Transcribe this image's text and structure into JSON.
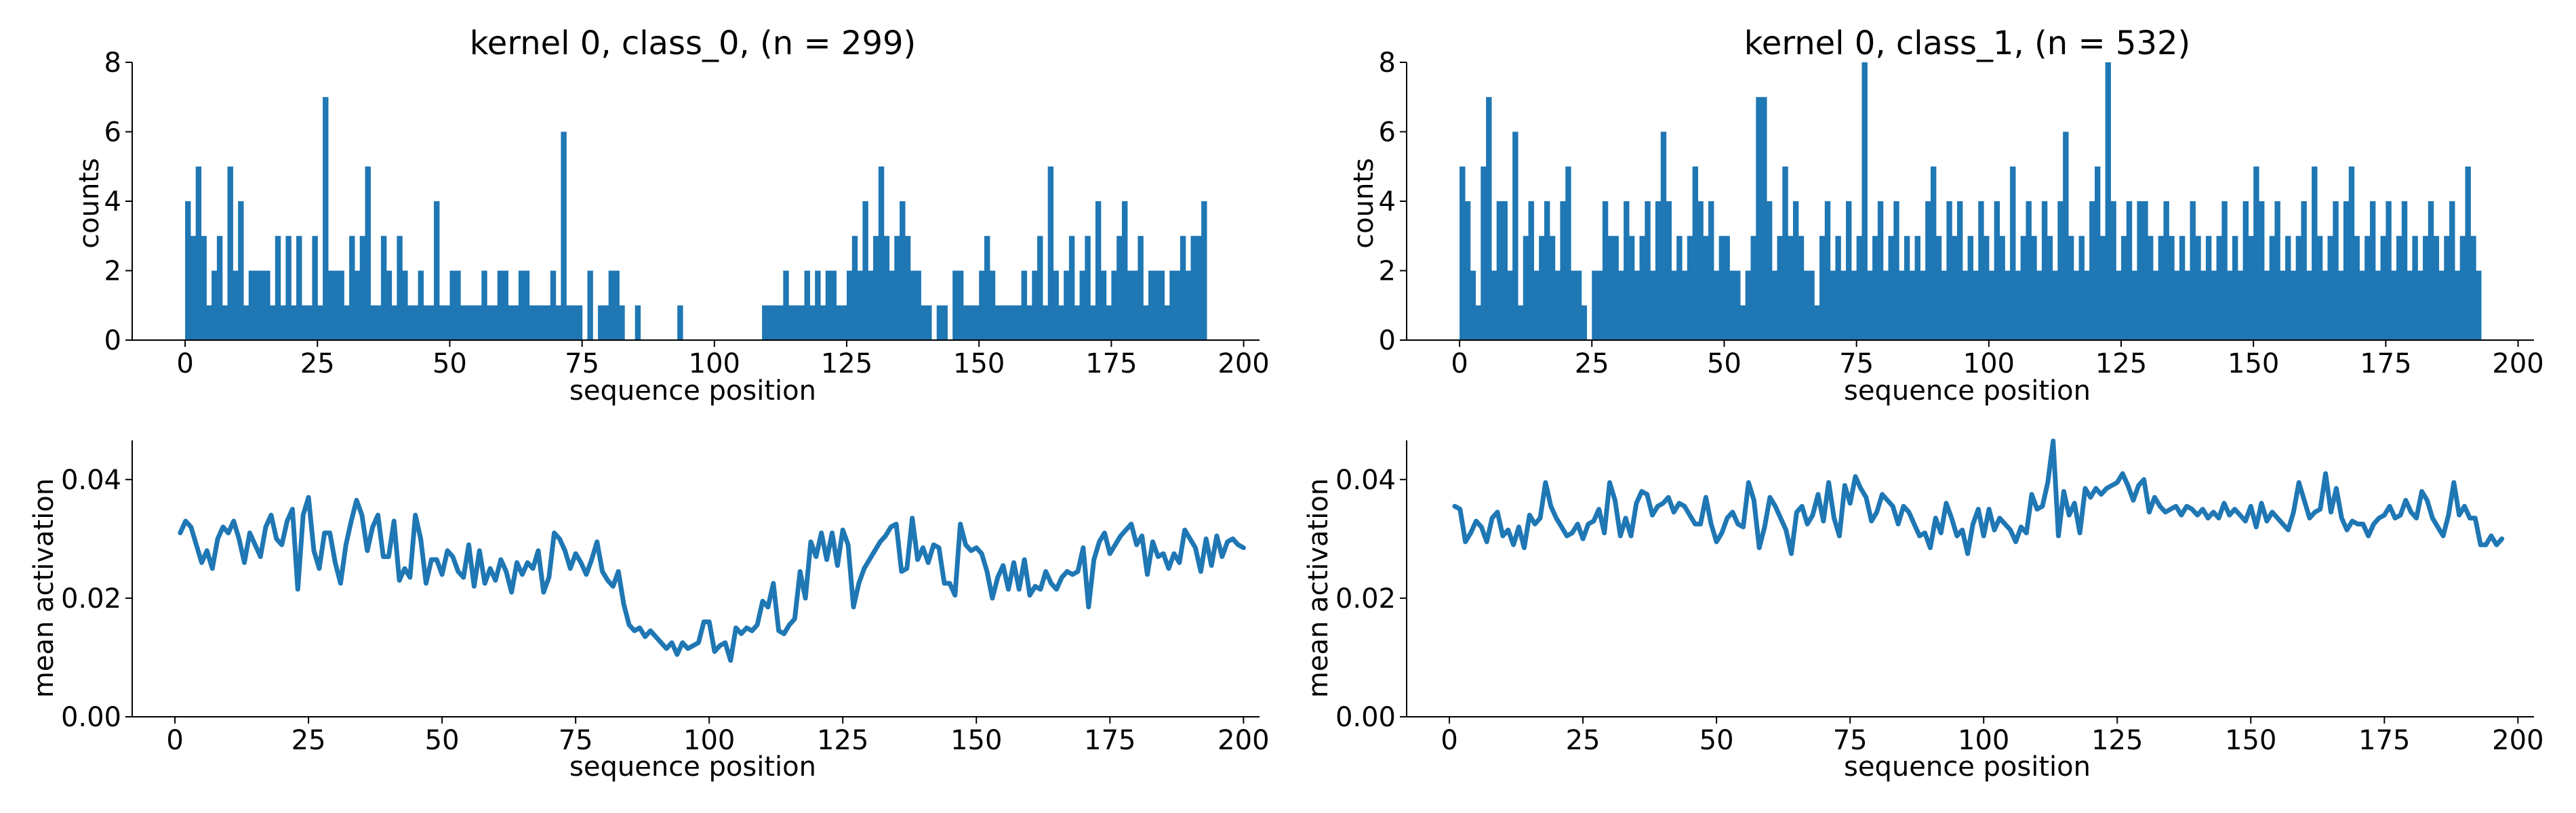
{
  "chart_data": [
    {
      "id": "hist0",
      "type": "bar",
      "title": "kernel 0, class_0, (n = 299)",
      "xlabel": "sequence position",
      "ylabel": "counts",
      "xlim": [
        -10,
        203
      ],
      "ylim": [
        0,
        8
      ],
      "xticks": [
        0,
        25,
        50,
        75,
        100,
        125,
        150,
        175,
        200
      ],
      "yticks": [
        0,
        2,
        4,
        6,
        8
      ],
      "color": "#1f77b4",
      "x": [
        0,
        1,
        2,
        3,
        4,
        5,
        6,
        7,
        8,
        9,
        10,
        11,
        12,
        13,
        14,
        15,
        16,
        17,
        18,
        19,
        20,
        21,
        22,
        23,
        24,
        25,
        26,
        27,
        28,
        29,
        30,
        31,
        32,
        33,
        34,
        35,
        36,
        37,
        38,
        39,
        40,
        41,
        42,
        43,
        44,
        45,
        46,
        47,
        48,
        49,
        50,
        51,
        52,
        53,
        54,
        55,
        56,
        57,
        58,
        59,
        60,
        61,
        62,
        63,
        64,
        65,
        66,
        67,
        68,
        69,
        70,
        71,
        72,
        73,
        74,
        75,
        76,
        77,
        78,
        79,
        80,
        81,
        82,
        83,
        84,
        85,
        86,
        87,
        88,
        89,
        90,
        91,
        92,
        93,
        94,
        95,
        96,
        97,
        98,
        99,
        100,
        101,
        102,
        103,
        104,
        105,
        106,
        107,
        108,
        109,
        110,
        111,
        112,
        113,
        114,
        115,
        116,
        117,
        118,
        119,
        120,
        121,
        122,
        123,
        124,
        125,
        126,
        127,
        128,
        129,
        130,
        131,
        132,
        133,
        134,
        135,
        136,
        137,
        138,
        139,
        140,
        141,
        142,
        143,
        144,
        145,
        146,
        147,
        148,
        149,
        150,
        151,
        152,
        153,
        154,
        155,
        156,
        157,
        158,
        159,
        160,
        161,
        162,
        163,
        164,
        165,
        166,
        167,
        168,
        169,
        170,
        171,
        172,
        173,
        174,
        175,
        176,
        177,
        178,
        179,
        180,
        181,
        182,
        183,
        184,
        185,
        186,
        187,
        188,
        189,
        190,
        191,
        192
      ],
      "values": [
        4,
        3,
        5,
        3,
        1,
        2,
        3,
        1,
        5,
        2,
        4,
        1,
        2,
        2,
        2,
        2,
        1,
        3,
        1,
        3,
        1,
        3,
        1,
        1,
        3,
        1,
        7,
        2,
        2,
        2,
        1,
        3,
        2,
        3,
        5,
        1,
        1,
        3,
        2,
        1,
        3,
        2,
        1,
        1,
        2,
        1,
        1,
        4,
        1,
        1,
        2,
        2,
        1,
        1,
        1,
        1,
        2,
        1,
        1,
        2,
        2,
        1,
        1,
        2,
        2,
        1,
        1,
        1,
        1,
        2,
        1,
        6,
        1,
        1,
        1,
        0,
        2,
        0,
        1,
        1,
        2,
        2,
        1,
        0,
        0,
        1,
        0,
        0,
        0,
        0,
        0,
        0,
        0,
        1,
        0,
        0,
        0,
        0,
        0,
        0,
        0,
        0,
        0,
        0,
        0,
        0,
        0,
        0,
        0,
        1,
        1,
        1,
        1,
        2,
        1,
        1,
        1,
        2,
        1,
        2,
        1,
        2,
        2,
        1,
        1,
        2,
        3,
        2,
        4,
        2,
        3,
        5,
        3,
        2,
        3,
        4,
        3,
        2,
        2,
        1,
        1,
        0,
        1,
        1,
        0,
        2,
        2,
        1,
        1,
        1,
        2,
        3,
        2,
        1,
        1,
        1,
        1,
        1,
        2,
        1,
        2,
        3,
        1,
        5,
        2,
        1,
        2,
        3,
        1,
        2,
        3,
        1,
        4,
        2,
        1,
        2,
        3,
        4,
        2,
        2,
        3,
        1,
        2,
        2,
        2,
        1,
        2,
        2,
        3,
        2,
        3,
        3,
        4
      ]
    },
    {
      "id": "line0",
      "type": "line",
      "title": "",
      "xlabel": "sequence position",
      "ylabel": "mean activation",
      "xlim": [
        -8,
        203
      ],
      "ylim": [
        0,
        0.0466
      ],
      "xticks": [
        0,
        25,
        50,
        75,
        100,
        125,
        150,
        175,
        200
      ],
      "yticks": [
        0.0,
        0.02,
        0.04
      ],
      "ytick_labels": [
        "0.00",
        "0.02",
        "0.04"
      ],
      "color": "#1f77b4",
      "x_start": 1,
      "y": [
        0.031,
        0.033,
        0.032,
        0.029,
        0.026,
        0.028,
        0.025,
        0.03,
        0.032,
        0.031,
        0.033,
        0.03,
        0.026,
        0.031,
        0.029,
        0.027,
        0.032,
        0.034,
        0.03,
        0.029,
        0.033,
        0.035,
        0.0215,
        0.034,
        0.037,
        0.028,
        0.025,
        0.031,
        0.031,
        0.026,
        0.0225,
        0.029,
        0.033,
        0.0365,
        0.034,
        0.028,
        0.032,
        0.034,
        0.027,
        0.027,
        0.033,
        0.023,
        0.025,
        0.0235,
        0.034,
        0.03,
        0.0225,
        0.0265,
        0.0265,
        0.024,
        0.028,
        0.027,
        0.0245,
        0.0235,
        0.029,
        0.022,
        0.028,
        0.0225,
        0.025,
        0.023,
        0.0265,
        0.0245,
        0.021,
        0.026,
        0.024,
        0.026,
        0.025,
        0.028,
        0.021,
        0.0235,
        0.031,
        0.03,
        0.028,
        0.025,
        0.0275,
        0.026,
        0.024,
        0.0265,
        0.0295,
        0.0245,
        0.023,
        0.022,
        0.0245,
        0.019,
        0.0155,
        0.0145,
        0.015,
        0.0135,
        0.0145,
        0.0135,
        0.0125,
        0.0115,
        0.0125,
        0.0105,
        0.0125,
        0.0115,
        0.012,
        0.0125,
        0.016,
        0.016,
        0.011,
        0.012,
        0.0125,
        0.0095,
        0.015,
        0.014,
        0.015,
        0.0145,
        0.0155,
        0.0195,
        0.0185,
        0.0225,
        0.0145,
        0.014,
        0.0155,
        0.0165,
        0.0245,
        0.02,
        0.0295,
        0.027,
        0.031,
        0.0265,
        0.031,
        0.0255,
        0.0315,
        0.029,
        0.0185,
        0.0225,
        0.025,
        0.0265,
        0.028,
        0.0295,
        0.0305,
        0.032,
        0.0325,
        0.0245,
        0.025,
        0.0335,
        0.0265,
        0.0285,
        0.026,
        0.029,
        0.0285,
        0.0225,
        0.0225,
        0.0205,
        0.0325,
        0.029,
        0.028,
        0.0285,
        0.0275,
        0.0245,
        0.02,
        0.0235,
        0.0255,
        0.0215,
        0.026,
        0.0215,
        0.0265,
        0.0205,
        0.022,
        0.0215,
        0.0245,
        0.0225,
        0.0215,
        0.0235,
        0.0245,
        0.024,
        0.0245,
        0.0285,
        0.0185,
        0.0265,
        0.0295,
        0.031,
        0.0275,
        0.029,
        0.0305,
        0.0315,
        0.0325,
        0.029,
        0.0305,
        0.024,
        0.0295,
        0.027,
        0.0275,
        0.025,
        0.0275,
        0.026,
        0.0315,
        0.03,
        0.0285,
        0.0245,
        0.03,
        0.0255,
        0.0305,
        0.027,
        0.0295,
        0.03,
        0.029,
        0.0285
      ]
    },
    {
      "id": "hist1",
      "type": "bar",
      "title": "kernel 0, class_1, (n = 532)",
      "xlabel": "sequence position",
      "ylabel": "counts",
      "xlim": [
        -10,
        203
      ],
      "ylim": [
        0,
        8
      ],
      "xticks": [
        0,
        25,
        50,
        75,
        100,
        125,
        150,
        175,
        200
      ],
      "yticks": [
        0,
        2,
        4,
        6,
        8
      ],
      "color": "#1f77b4",
      "x": [
        0,
        1,
        2,
        3,
        4,
        5,
        6,
        7,
        8,
        9,
        10,
        11,
        12,
        13,
        14,
        15,
        16,
        17,
        18,
        19,
        20,
        21,
        22,
        23,
        24,
        25,
        26,
        27,
        28,
        29,
        30,
        31,
        32,
        33,
        34,
        35,
        36,
        37,
        38,
        39,
        40,
        41,
        42,
        43,
        44,
        45,
        46,
        47,
        48,
        49,
        50,
        51,
        52,
        53,
        54,
        55,
        56,
        57,
        58,
        59,
        60,
        61,
        62,
        63,
        64,
        65,
        66,
        67,
        68,
        69,
        70,
        71,
        72,
        73,
        74,
        75,
        76,
        77,
        78,
        79,
        80,
        81,
        82,
        83,
        84,
        85,
        86,
        87,
        88,
        89,
        90,
        91,
        92,
        93,
        94,
        95,
        96,
        97,
        98,
        99,
        100,
        101,
        102,
        103,
        104,
        105,
        106,
        107,
        108,
        109,
        110,
        111,
        112,
        113,
        114,
        115,
        116,
        117,
        118,
        119,
        120,
        121,
        122,
        123,
        124,
        125,
        126,
        127,
        128,
        129,
        130,
        131,
        132,
        133,
        134,
        135,
        136,
        137,
        138,
        139,
        140,
        141,
        142,
        143,
        144,
        145,
        146,
        147,
        148,
        149,
        150,
        151,
        152,
        153,
        154,
        155,
        156,
        157,
        158,
        159,
        160,
        161,
        162,
        163,
        164,
        165,
        166,
        167,
        168,
        169,
        170,
        171,
        172,
        173,
        174,
        175,
        176,
        177,
        178,
        179,
        180,
        181,
        182,
        183,
        184,
        185,
        186,
        187,
        188,
        189,
        190,
        191,
        192
      ],
      "values": [
        5,
        4,
        2,
        1,
        5,
        7,
        2,
        4,
        4,
        2,
        6,
        1,
        3,
        4,
        2,
        3,
        4,
        3,
        2,
        4,
        5,
        2,
        2,
        1,
        0,
        2,
        2,
        4,
        3,
        3,
        2,
        4,
        3,
        2,
        3,
        4,
        2,
        4,
        6,
        4,
        2,
        3,
        2,
        3,
        5,
        4,
        3,
        4,
        2,
        3,
        3,
        2,
        2,
        1,
        2,
        3,
        7,
        7,
        4,
        2,
        3,
        5,
        3,
        4,
        3,
        2,
        2,
        1,
        3,
        4,
        2,
        3,
        2,
        4,
        2,
        3,
        8,
        2,
        3,
        4,
        2,
        3,
        4,
        2,
        3,
        2,
        3,
        2,
        4,
        5,
        3,
        2,
        4,
        3,
        4,
        2,
        3,
        2,
        4,
        3,
        2,
        4,
        3,
        2,
        5,
        2,
        3,
        4,
        3,
        2,
        4,
        3,
        2,
        4,
        6,
        3,
        2,
        3,
        2,
        4,
        5,
        3,
        8,
        4,
        2,
        3,
        4,
        2,
        4,
        4,
        3,
        2,
        3,
        4,
        3,
        2,
        3,
        2,
        4,
        3,
        2,
        3,
        2,
        3,
        4,
        2,
        3,
        2,
        4,
        3,
        5,
        4,
        2,
        3,
        4,
        2,
        3,
        2,
        3,
        4,
        2,
        5,
        3,
        2,
        3,
        4,
        2,
        4,
        5,
        3,
        2,
        3,
        4,
        2,
        3,
        4,
        2,
        3,
        4,
        2,
        3,
        2,
        3,
        4,
        3,
        2,
        3,
        4,
        2,
        3,
        5,
        3,
        2
      ]
    },
    {
      "id": "line1",
      "type": "line",
      "title": "",
      "xlabel": "sequence position",
      "ylabel": "mean activation",
      "xlim": [
        -8,
        203
      ],
      "ylim": [
        0,
        0.0466
      ],
      "xticks": [
        0,
        25,
        50,
        75,
        100,
        125,
        150,
        175,
        200
      ],
      "yticks": [
        0.0,
        0.02,
        0.04
      ],
      "ytick_labels": [
        "0.00",
        "0.02",
        "0.04"
      ],
      "color": "#1f77b4",
      "x_start": 1,
      "y": [
        0.0355,
        0.035,
        0.0295,
        0.031,
        0.033,
        0.032,
        0.0295,
        0.0335,
        0.0345,
        0.0305,
        0.0315,
        0.029,
        0.032,
        0.0285,
        0.034,
        0.0325,
        0.0335,
        0.0395,
        0.0355,
        0.0335,
        0.032,
        0.0305,
        0.031,
        0.0325,
        0.03,
        0.0325,
        0.033,
        0.035,
        0.031,
        0.0395,
        0.0365,
        0.0305,
        0.0335,
        0.0305,
        0.036,
        0.038,
        0.0375,
        0.034,
        0.0355,
        0.036,
        0.037,
        0.0345,
        0.036,
        0.0355,
        0.034,
        0.0325,
        0.0325,
        0.037,
        0.0325,
        0.0295,
        0.031,
        0.0335,
        0.0345,
        0.0325,
        0.032,
        0.0395,
        0.0365,
        0.0285,
        0.032,
        0.037,
        0.0355,
        0.0335,
        0.0315,
        0.0275,
        0.0345,
        0.0355,
        0.0325,
        0.034,
        0.0375,
        0.033,
        0.0395,
        0.0335,
        0.0305,
        0.039,
        0.036,
        0.0405,
        0.0385,
        0.037,
        0.033,
        0.0345,
        0.0375,
        0.0365,
        0.0355,
        0.0325,
        0.0355,
        0.0345,
        0.0325,
        0.0305,
        0.031,
        0.0285,
        0.0335,
        0.031,
        0.036,
        0.0335,
        0.0305,
        0.0315,
        0.0275,
        0.0325,
        0.035,
        0.0305,
        0.035,
        0.0315,
        0.0335,
        0.0325,
        0.0315,
        0.0295,
        0.032,
        0.031,
        0.0375,
        0.035,
        0.0355,
        0.0395,
        0.0465,
        0.0305,
        0.038,
        0.034,
        0.036,
        0.031,
        0.0385,
        0.037,
        0.0385,
        0.0375,
        0.0385,
        0.039,
        0.0395,
        0.041,
        0.039,
        0.0365,
        0.039,
        0.04,
        0.0345,
        0.037,
        0.0355,
        0.0345,
        0.035,
        0.0355,
        0.034,
        0.0355,
        0.035,
        0.034,
        0.035,
        0.0335,
        0.0345,
        0.0335,
        0.036,
        0.034,
        0.035,
        0.034,
        0.033,
        0.0355,
        0.032,
        0.036,
        0.033,
        0.0345,
        0.0335,
        0.0325,
        0.0315,
        0.0345,
        0.0395,
        0.0365,
        0.0335,
        0.0345,
        0.035,
        0.041,
        0.0345,
        0.0385,
        0.0335,
        0.0315,
        0.033,
        0.0325,
        0.0325,
        0.0305,
        0.0325,
        0.0335,
        0.034,
        0.0355,
        0.0335,
        0.034,
        0.0365,
        0.0345,
        0.0335,
        0.038,
        0.0365,
        0.0335,
        0.032,
        0.0305,
        0.034,
        0.0395,
        0.034,
        0.0355,
        0.0335,
        0.0335,
        0.029,
        0.029,
        0.0305,
        0.029,
        0.03
      ]
    }
  ]
}
